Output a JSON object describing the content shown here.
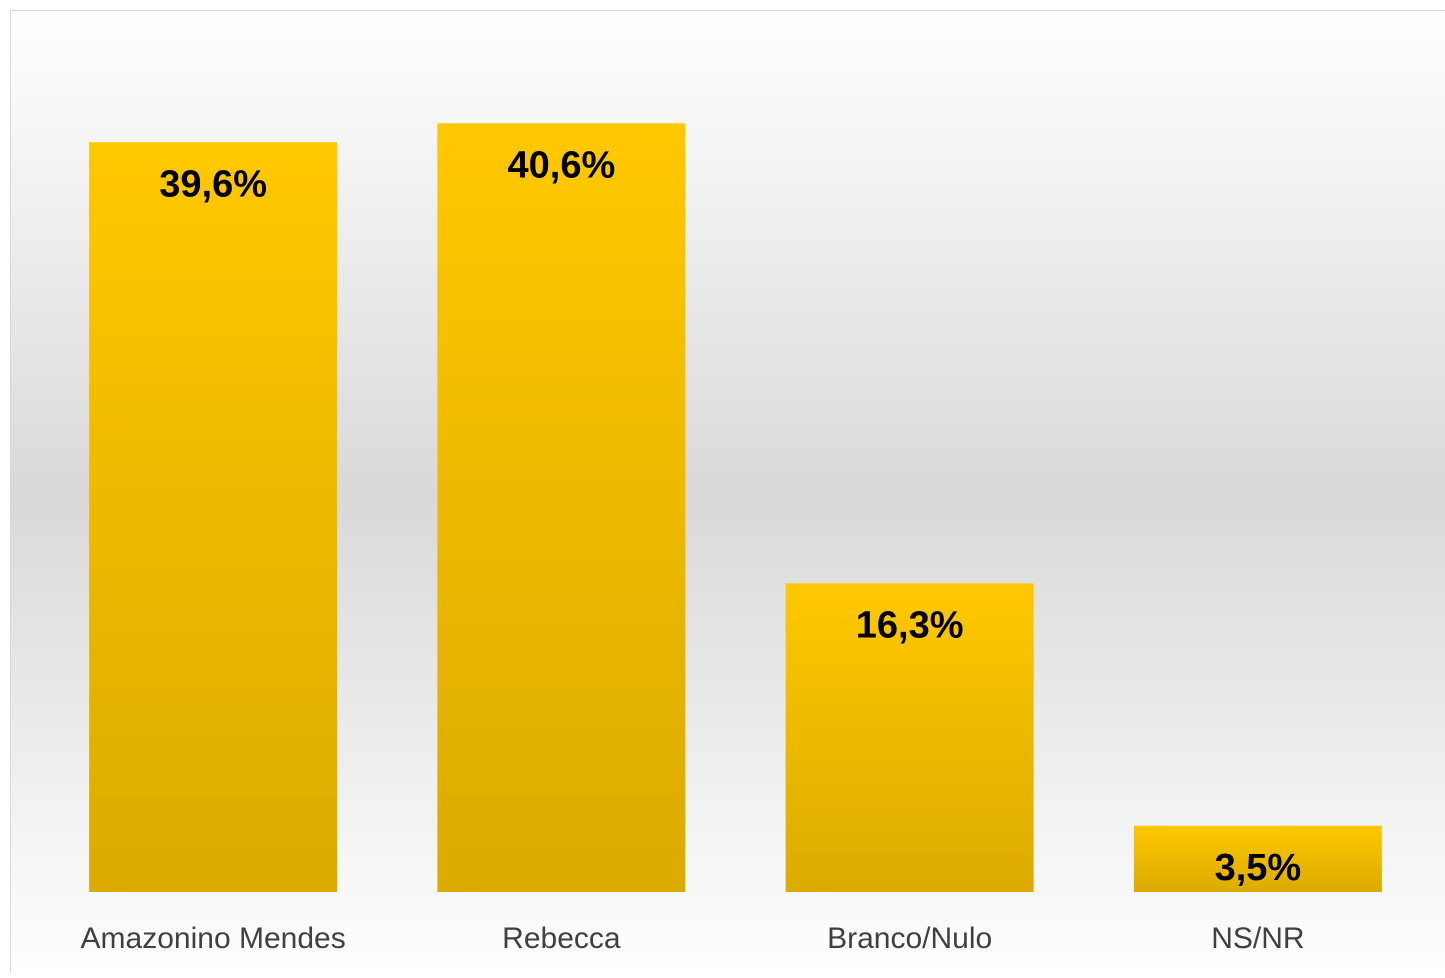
{
  "chart_data": {
    "type": "bar",
    "categories": [
      "Amazonino Mendes",
      "Rebecca",
      "Branco/Nulo",
      "NS/NR"
    ],
    "values": [
      39.6,
      40.6,
      16.3,
      3.5
    ],
    "value_labels": [
      "39,6%",
      "40,6%",
      "16,3%",
      "3,5%"
    ],
    "color": "#ffc800",
    "ylim": [
      0,
      45
    ]
  }
}
